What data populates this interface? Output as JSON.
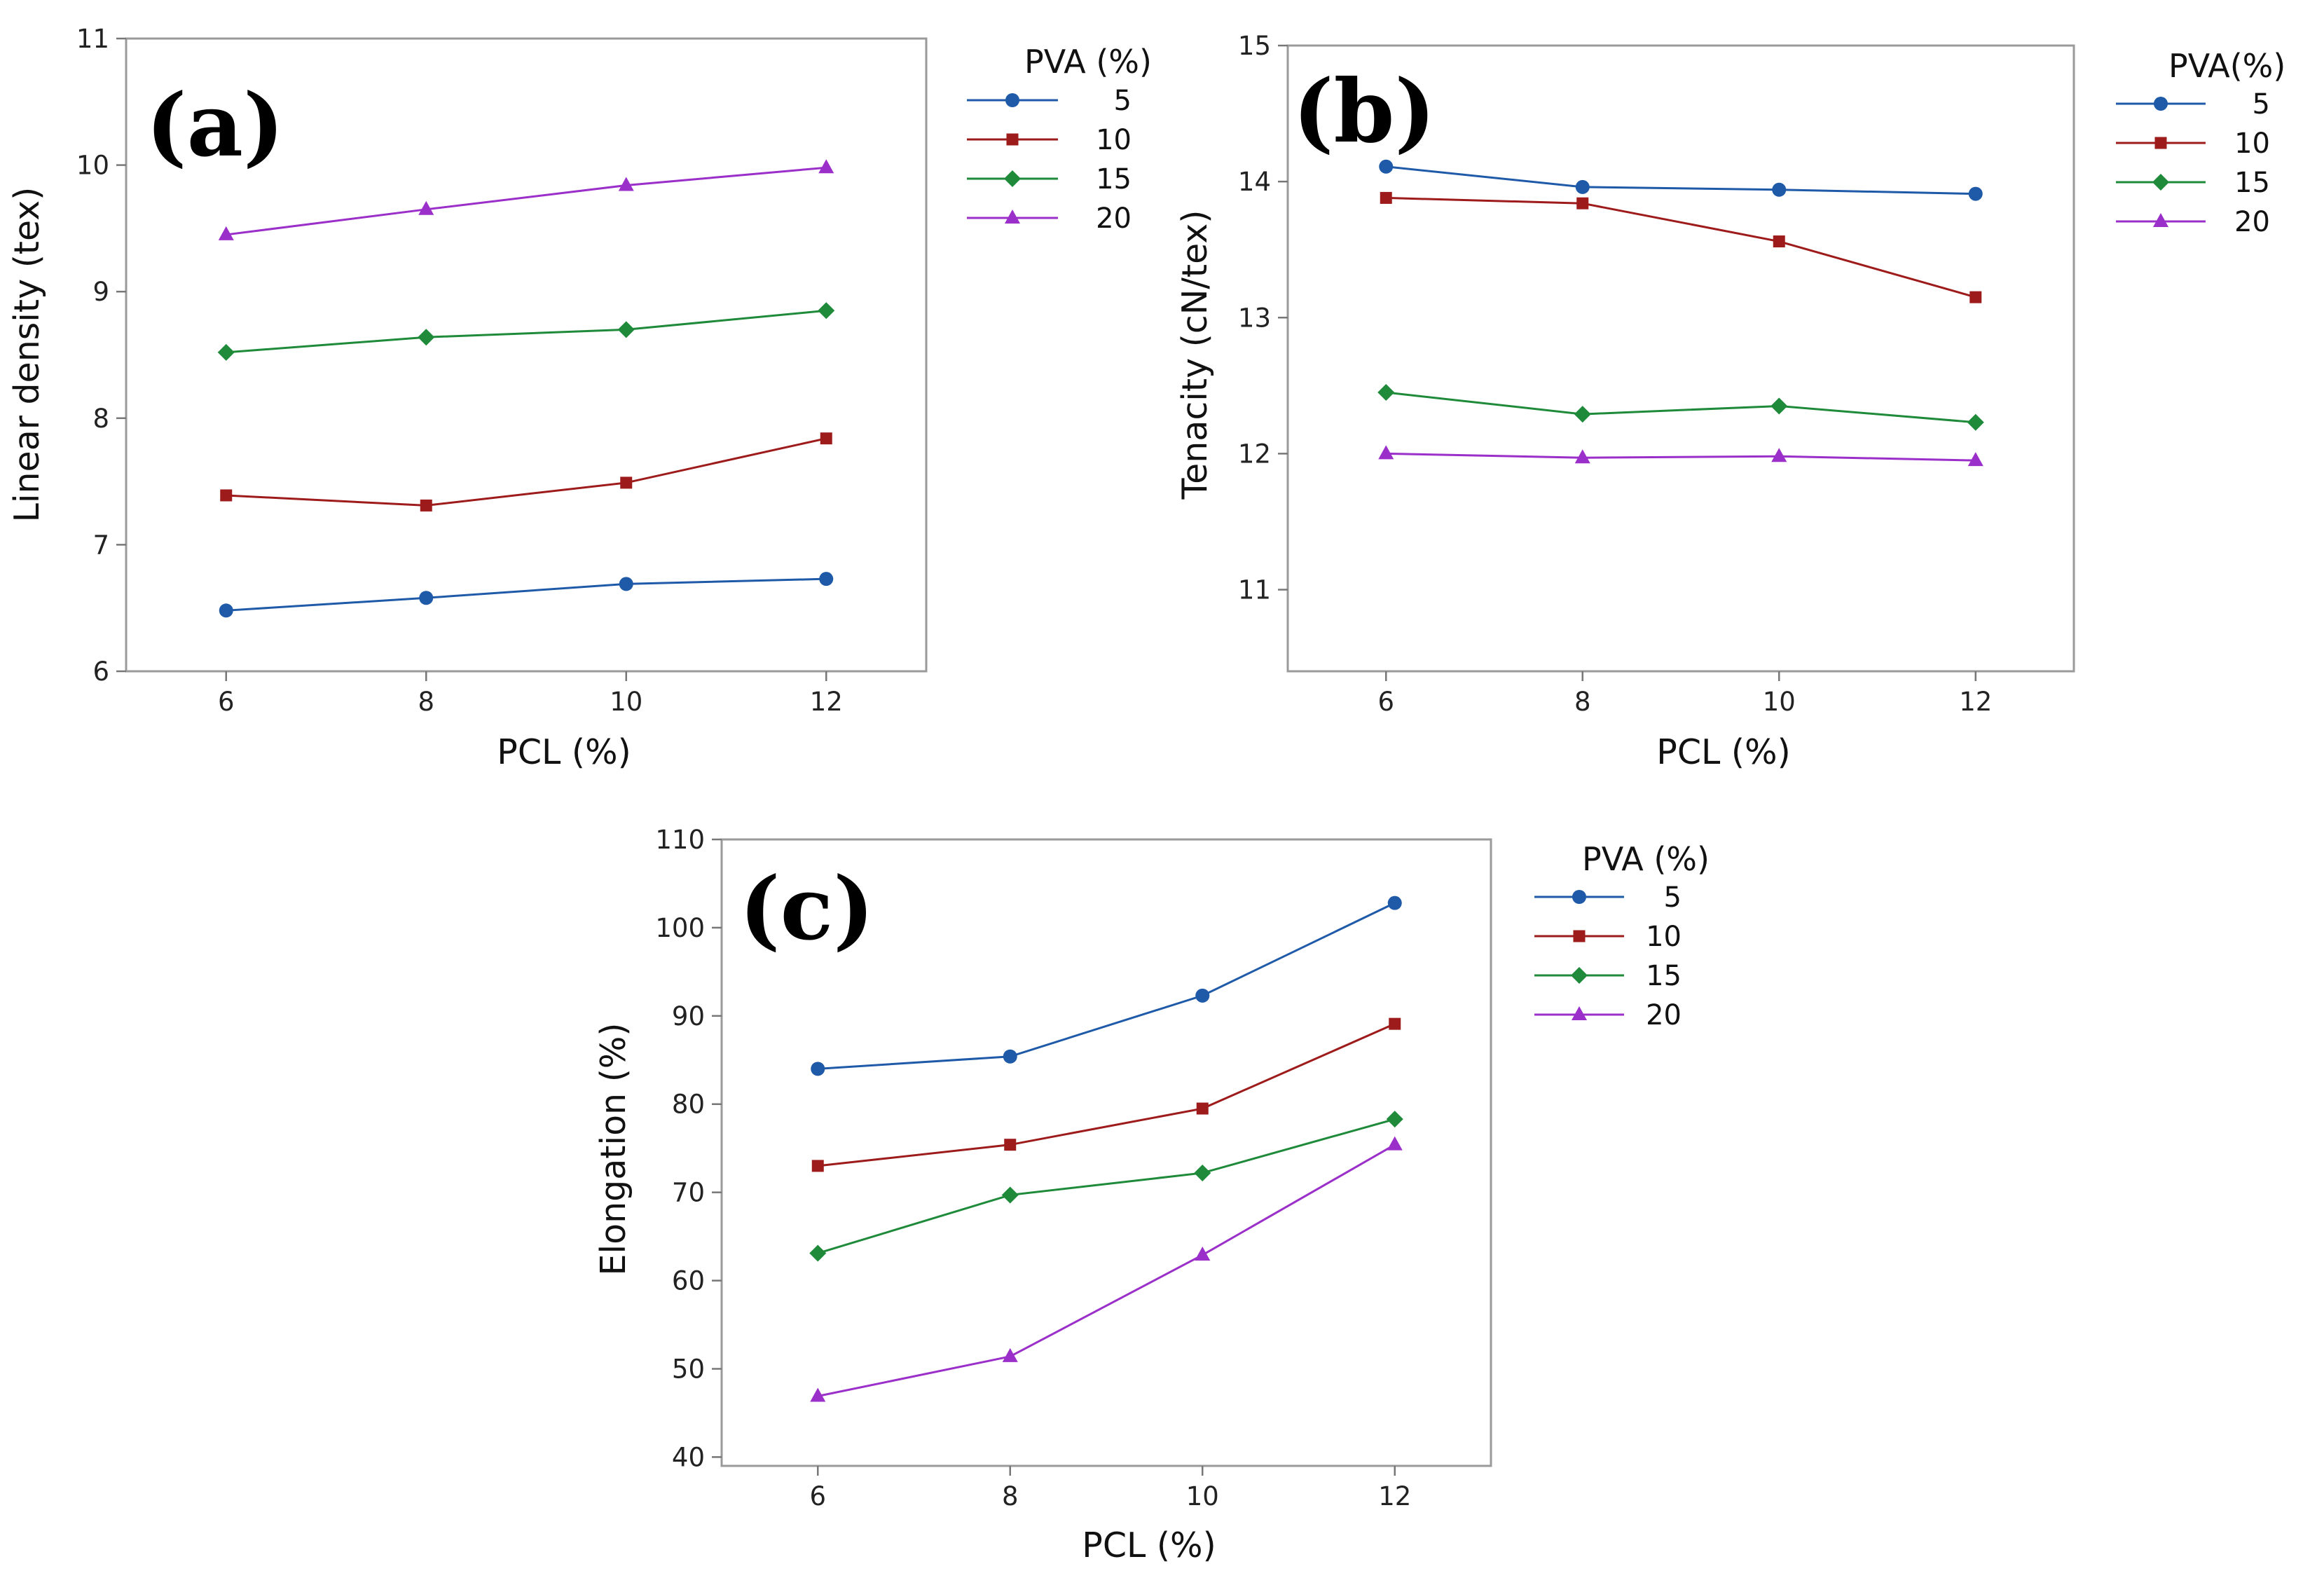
{
  "colors": {
    "5": "#1f5aa8",
    "10": "#9e1b1b",
    "15": "#1e8a3a",
    "20": "#9b2fc9"
  },
  "markers": {
    "5": "circle",
    "10": "square",
    "15": "diamond",
    "20": "triangle"
  },
  "chart_data": [
    {
      "type": "line",
      "panel_label": "(a)",
      "xlabel": "PCL (%)",
      "ylabel": "Linear density (tex)",
      "x": [
        6,
        8,
        10,
        12
      ],
      "xlim": [
        5,
        13
      ],
      "ylim": [
        6,
        11
      ],
      "yticks": [
        6,
        7,
        8,
        9,
        10,
        11
      ],
      "legend_title": "PVA (%)",
      "legend_position": "right",
      "series": [
        {
          "name": "5",
          "values": [
            6.48,
            6.58,
            6.69,
            6.73
          ]
        },
        {
          "name": "10",
          "values": [
            7.39,
            7.31,
            7.49,
            7.84
          ]
        },
        {
          "name": "15",
          "values": [
            8.52,
            8.64,
            8.7,
            8.85
          ]
        },
        {
          "name": "20",
          "values": [
            9.45,
            9.65,
            9.84,
            9.98
          ]
        }
      ]
    },
    {
      "type": "line",
      "panel_label": "(b)",
      "xlabel": "PCL (%)",
      "ylabel": "Tenacity (cN/tex)",
      "x": [
        6,
        8,
        10,
        12
      ],
      "xlim": [
        5,
        13
      ],
      "ylim": [
        10.4,
        15
      ],
      "yticks": [
        11,
        12,
        13,
        14,
        15
      ],
      "legend_title": "PVA(%)",
      "legend_position": "right",
      "series": [
        {
          "name": "5",
          "values": [
            14.11,
            13.96,
            13.94,
            13.91
          ]
        },
        {
          "name": "10",
          "values": [
            13.88,
            13.84,
            13.56,
            13.15
          ]
        },
        {
          "name": "15",
          "values": [
            12.45,
            12.29,
            12.35,
            12.23
          ]
        },
        {
          "name": "20",
          "values": [
            12.0,
            11.97,
            11.98,
            11.95
          ]
        }
      ]
    },
    {
      "type": "line",
      "panel_label": "(c)",
      "xlabel": "PCL (%)",
      "ylabel": "Elongation (%)",
      "x": [
        6,
        8,
        10,
        12
      ],
      "xlim": [
        5,
        13
      ],
      "ylim": [
        39,
        110
      ],
      "yticks": [
        40,
        50,
        60,
        70,
        80,
        90,
        100,
        110
      ],
      "legend_title": "PVA (%)",
      "legend_position": "right",
      "series": [
        {
          "name": "5",
          "values": [
            84.0,
            85.4,
            92.3,
            102.8
          ]
        },
        {
          "name": "10",
          "values": [
            73.0,
            75.4,
            79.5,
            89.1
          ]
        },
        {
          "name": "15",
          "values": [
            63.1,
            69.7,
            72.2,
            78.3
          ]
        },
        {
          "name": "20",
          "values": [
            46.9,
            51.4,
            62.9,
            75.4
          ]
        }
      ]
    }
  ]
}
